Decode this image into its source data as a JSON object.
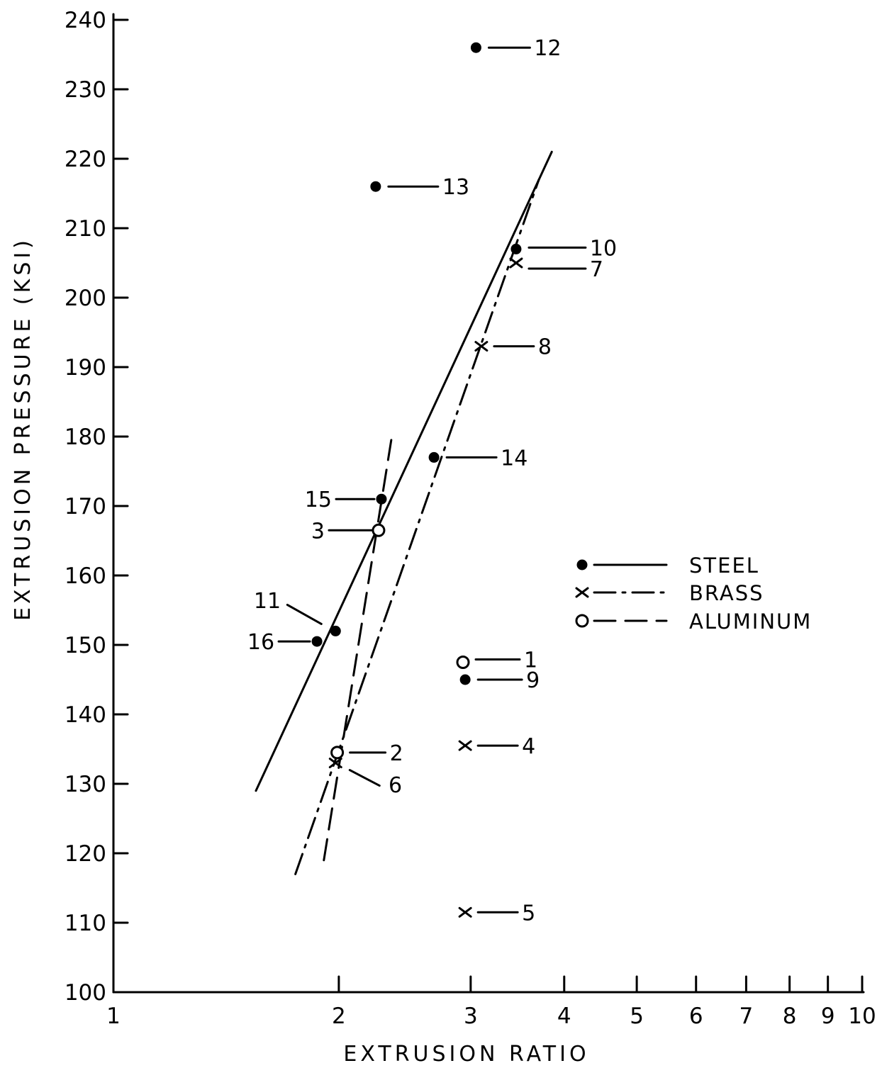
{
  "chart_data": {
    "type": "scatter",
    "x_scale": "log",
    "xlim": [
      1,
      10
    ],
    "ylim": [
      100,
      240
    ],
    "xlabel": "EXTRUSION RATIO",
    "ylabel": "EXTRUSION PRESSURE (KSI)",
    "x_tick_labels": [
      "1",
      "2",
      "3",
      "4",
      "5",
      "6",
      "7",
      "8",
      "9",
      "10"
    ],
    "y_tick_labels": [
      "100",
      "110",
      "120",
      "130",
      "140",
      "150",
      "160",
      "170",
      "180",
      "190",
      "200",
      "210",
      "220",
      "230",
      "240"
    ],
    "grid": false,
    "legend_position": "right",
    "series": [
      {
        "name": "STEEL",
        "marker": "filled-circle",
        "line_style": "solid",
        "points": [
          {
            "label": "9",
            "x": 2.95,
            "y": 145
          },
          {
            "label": "10",
            "x": 3.45,
            "y": 207
          },
          {
            "label": "11",
            "x": 1.98,
            "y": 152
          },
          {
            "label": "12",
            "x": 3.05,
            "y": 236
          },
          {
            "label": "13",
            "x": 2.24,
            "y": 216
          },
          {
            "label": "14",
            "x": 2.68,
            "y": 177
          },
          {
            "label": "15",
            "x": 2.28,
            "y": 171
          },
          {
            "label": "16",
            "x": 1.87,
            "y": 150.5
          }
        ],
        "fit_line": [
          [
            1.55,
            129
          ],
          [
            3.85,
            221
          ]
        ]
      },
      {
        "name": "BRASS",
        "marker": "x",
        "line_style": "dash-dot",
        "points": [
          {
            "label": "4",
            "x": 2.95,
            "y": 135.5
          },
          {
            "label": "5",
            "x": 2.95,
            "y": 111.5
          },
          {
            "label": "6",
            "x": 1.98,
            "y": 133
          },
          {
            "label": "7",
            "x": 3.45,
            "y": 205
          },
          {
            "label": "8",
            "x": 3.1,
            "y": 193
          }
        ],
        "fit_line": [
          [
            1.75,
            117
          ],
          [
            3.7,
            217
          ]
        ]
      },
      {
        "name": "ALUMINUM",
        "marker": "open-circle",
        "line_style": "dashed",
        "points": [
          {
            "label": "1",
            "x": 2.93,
            "y": 147.5
          },
          {
            "label": "2",
            "x": 1.99,
            "y": 134.5
          },
          {
            "label": "3",
            "x": 2.26,
            "y": 166.5
          }
        ],
        "fit_line": [
          [
            1.91,
            119
          ],
          [
            2.35,
            179.5
          ]
        ]
      }
    ]
  }
}
